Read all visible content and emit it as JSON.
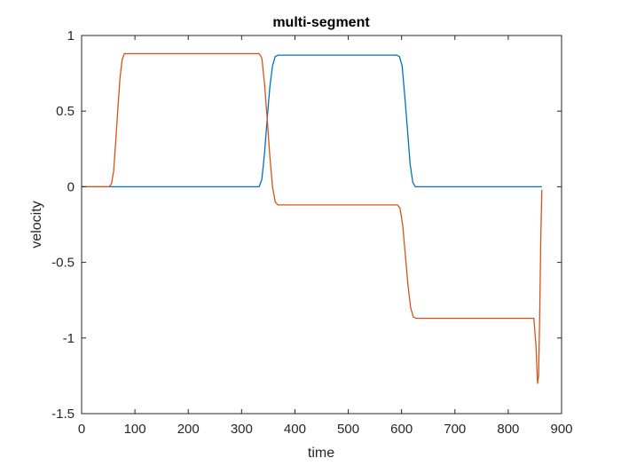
{
  "chart_data": {
    "type": "line",
    "title": "multi-segment",
    "xlabel": "time",
    "ylabel": "velocity",
    "xlim": [
      0,
      900
    ],
    "ylim": [
      -1.5,
      1
    ],
    "xticks": [
      0,
      100,
      200,
      300,
      400,
      500,
      600,
      700,
      800,
      900
    ],
    "yticks": [
      -1.5,
      -1,
      -0.5,
      0,
      0.5,
      1
    ],
    "xtick_labels": [
      "0",
      "100",
      "200",
      "300",
      "400",
      "500",
      "600",
      "700",
      "800",
      "900"
    ],
    "ytick_labels": [
      "-1.5",
      "-1",
      "-0.5",
      "0",
      "0.5",
      "1"
    ],
    "grid": false,
    "legend": "none",
    "series": [
      {
        "color": "#0072BD",
        "x": [
          0,
          333,
          338,
          343,
          348,
          353,
          358,
          363,
          368,
          372,
          591,
          596,
          601,
          606,
          611,
          616,
          621,
          626,
          630,
          863
        ],
        "y": [
          0,
          0,
          0.05,
          0.22,
          0.45,
          0.66,
          0.8,
          0.86,
          0.87,
          0.87,
          0.87,
          0.86,
          0.8,
          0.6,
          0.38,
          0.15,
          0.03,
          0,
          0,
          0
        ]
      },
      {
        "color": "#D95319",
        "x": [
          0,
          52,
          56,
          60,
          64,
          68,
          72,
          76,
          80,
          85,
          333,
          338,
          343,
          348,
          353,
          358,
          363,
          368,
          372,
          592,
          597,
          602,
          607,
          612,
          617,
          622,
          627,
          631,
          848,
          852,
          855,
          857,
          859,
          861,
          863
        ],
        "y": [
          0,
          0,
          0.02,
          0.1,
          0.3,
          0.52,
          0.72,
          0.84,
          0.88,
          0.88,
          0.88,
          0.85,
          0.68,
          0.45,
          0.2,
          0.0,
          -0.1,
          -0.12,
          -0.12,
          -0.12,
          -0.14,
          -0.25,
          -0.45,
          -0.65,
          -0.8,
          -0.86,
          -0.87,
          -0.87,
          -0.87,
          -1.05,
          -1.3,
          -1.25,
          -0.85,
          -0.35,
          -0.02
        ]
      }
    ]
  }
}
